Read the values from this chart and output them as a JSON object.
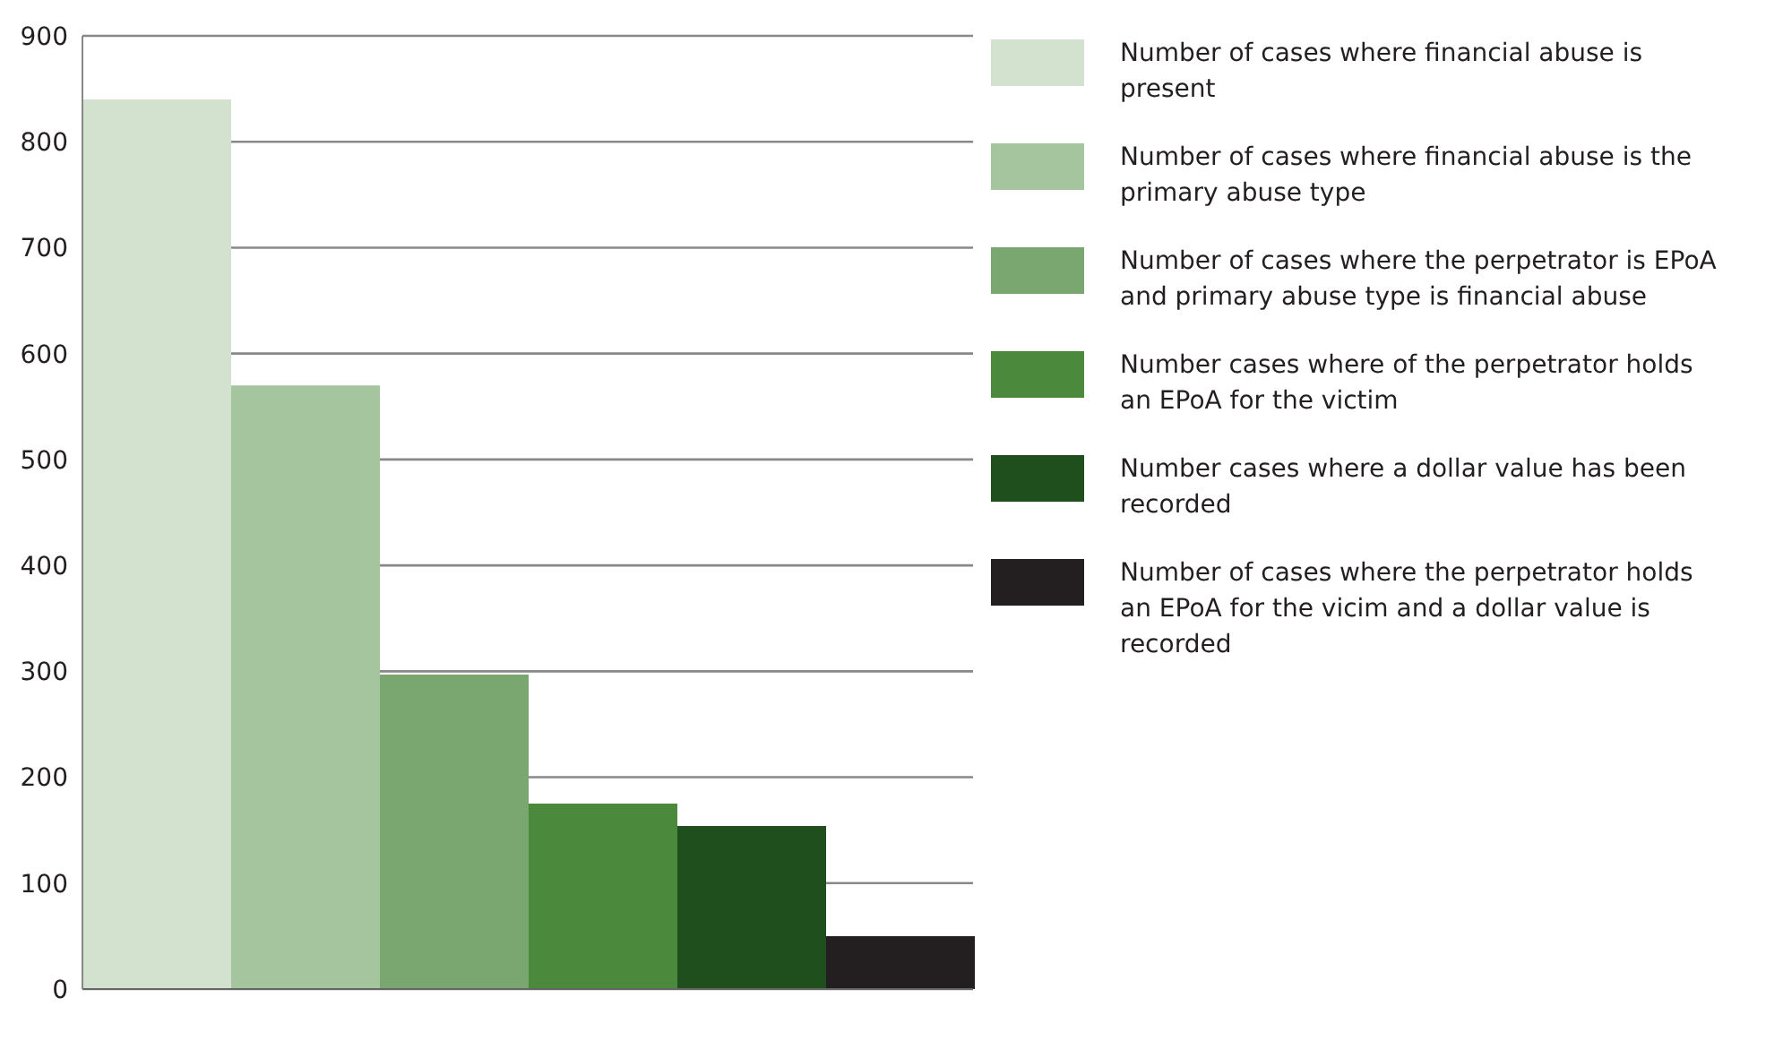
{
  "chart_data": {
    "type": "bar",
    "categories": [
      null
    ],
    "series": [
      {
        "name": "Number of cases where financial abuse is present",
        "color": "#d3e2cf",
        "values": [
          840
        ]
      },
      {
        "name": "Number of cases where financial abuse is the primary abuse type",
        "color": "#a5c59e",
        "values": [
          570
        ]
      },
      {
        "name": "Number of cases where the perpetrator is EPoA and primary abuse type is financial abuse",
        "color": "#79a76f",
        "values": [
          297
        ]
      },
      {
        "name": "Number cases where of the perpetrator holds an EPoA for the victim",
        "color": "#4b8a3d",
        "values": [
          175
        ]
      },
      {
        "name": "Number cases where a dollar value has been recorded",
        "color": "#1f4f1d",
        "values": [
          154
        ]
      },
      {
        "name": "Number of cases where the perpetrator holds an EPoA for the vicim and a dollar value is recorded",
        "color": "#231f20",
        "values": [
          50
        ]
      }
    ],
    "ylim": [
      0,
      900
    ],
    "yticks": [
      0,
      100,
      200,
      300,
      400,
      500,
      600,
      700,
      800,
      900
    ],
    "grid": "y",
    "legend": "right"
  }
}
